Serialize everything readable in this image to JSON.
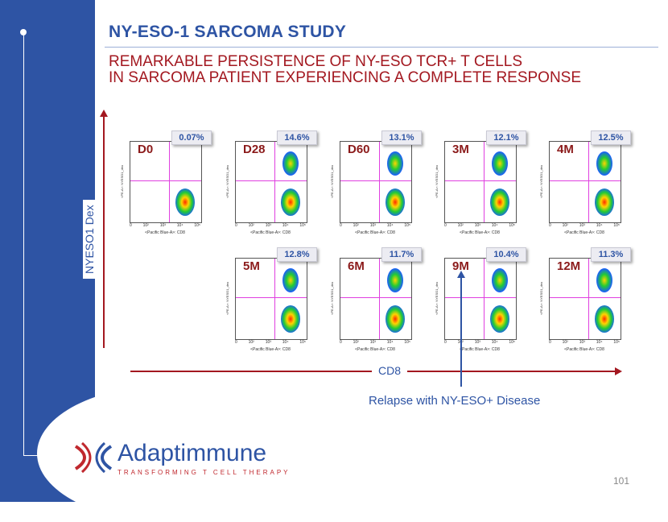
{
  "header": {
    "title": "NY-ESO-1 SARCOMA STUDY",
    "subtitle_line1": "REMARKABLE PERSISTENCE OF NY-ESO TCR+ T CELLS",
    "subtitle_line2": "IN SARCOMA PATIENT EXPERIENCING A COMPLETE RESPONSE"
  },
  "axes": {
    "y_label": "NYESO1 Dex",
    "x_label": "CD8",
    "panel_x_label": "<Pacific Blue-A>: CD8",
    "panel_y_label": "<PE-A>: NYESO1_dex",
    "ticks": [
      "0",
      "10²",
      "10³",
      "10⁴",
      "10⁵"
    ]
  },
  "panels": [
    {
      "timepoint": "D0",
      "percent": "0.07%"
    },
    {
      "timepoint": "D28",
      "percent": "14.6%"
    },
    {
      "timepoint": "D60",
      "percent": "13.1%"
    },
    {
      "timepoint": "3M",
      "percent": "12.1%"
    },
    {
      "timepoint": "4M",
      "percent": "12.5%"
    },
    {
      "timepoint": "5M",
      "percent": "12.8%"
    },
    {
      "timepoint": "6M",
      "percent": "11.7%"
    },
    {
      "timepoint": "9M",
      "percent": "10.4%"
    },
    {
      "timepoint": "12M",
      "percent": "11.3%"
    }
  ],
  "annotation": {
    "relapse": "Relapse with NY-ESO+ Disease"
  },
  "logo": {
    "brand": "Adaptimmune",
    "tagline": "TRANSFORMING T CELL THERAPY"
  },
  "page_number": "101",
  "colors": {
    "brand_blue": "#2e54a4",
    "accent_red": "#a31820",
    "gate_magenta": "#e040e0"
  }
}
